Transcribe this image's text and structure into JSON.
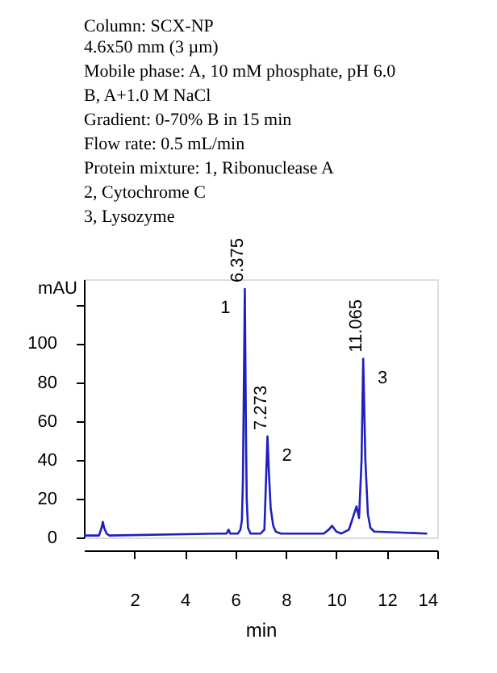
{
  "chart_data": {
    "type": "line",
    "title": "Column: SCX-NP",
    "subtitle": [
      "4.6x50 mm (3 µm)",
      "Mobile phase: A, 10 mM phosphate, pH 6.0",
      "B, A+1.0 M NaCl",
      "Gradient: 0-70% B in 15 min",
      "Flow rate: 0.5 mL/min",
      "Protein mixture: 1, Ribonuclease A",
      "2, Cytochrome C",
      "3, Lysozyme"
    ],
    "xlabel": "min",
    "ylabel": "mAU",
    "series": [
      {
        "color": "#1f1fbf",
        "x": [
          0,
          0.6,
          0.7,
          0.75,
          0.8,
          0.9,
          1.0,
          5.4,
          5.65,
          5.73,
          5.8,
          6.1,
          6.2,
          6.26,
          6.3,
          6.375,
          6.42,
          6.45,
          6.5,
          6.6,
          7.0,
          7.15,
          7.273,
          7.33,
          7.4,
          7.5,
          7.6,
          7.8,
          9.5,
          9.7,
          9.83,
          10.0,
          10.2,
          10.5,
          10.7,
          10.8,
          10.9,
          11.0,
          11.065,
          11.15,
          11.25,
          11.35,
          11.5,
          13.6
        ],
        "values": [
          1,
          1,
          5,
          8,
          5,
          2,
          1,
          2,
          2,
          4,
          2,
          2,
          4,
          9,
          30,
          128,
          54,
          20,
          5,
          2,
          2,
          4,
          52,
          33,
          15,
          6,
          3,
          2,
          2,
          4,
          6,
          3,
          2,
          4,
          12,
          16,
          10,
          40,
          92,
          40,
          12,
          5,
          3,
          2
        ]
      }
    ],
    "xlim": [
      0,
      14
    ],
    "xticks": [
      2,
      4,
      6,
      8,
      10,
      12,
      14
    ],
    "ylim": [
      0,
      133
    ],
    "yticks": [
      0,
      20,
      40,
      60,
      80,
      100,
      {
        "value": 120,
        "label": null
      }
    ],
    "annotations": [
      {
        "text": "6.375",
        "x": 6.375,
        "y": 128
      },
      {
        "text": "1",
        "x": 6.375,
        "y": 128
      },
      {
        "text": "7.273",
        "x": 7.273,
        "y": 52
      },
      {
        "text": "2",
        "x": 7.273,
        "y": 52
      },
      {
        "text": "11.065",
        "x": 11.065,
        "y": 92
      },
      {
        "text": "3",
        "x": 11.065,
        "y": 92
      }
    ],
    "grid": false,
    "marker": "none",
    "line_style": "solid"
  }
}
